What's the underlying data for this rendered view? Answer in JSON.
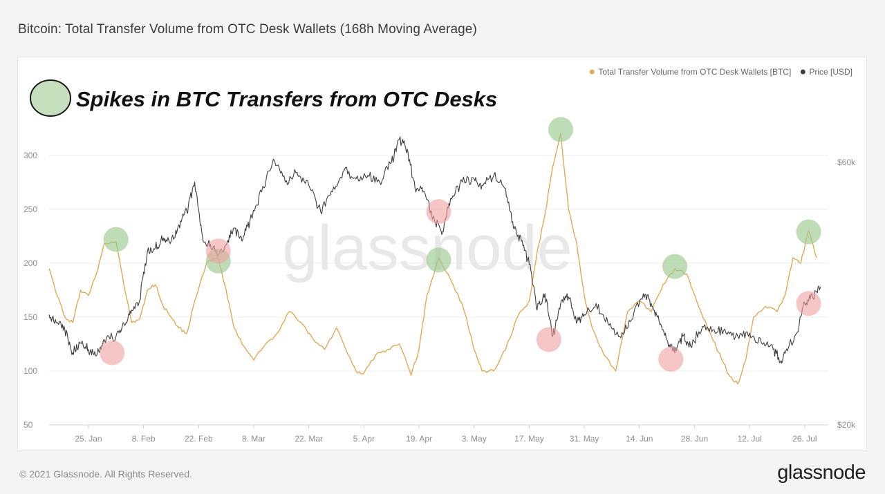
{
  "title": "Bitcoin: Total Transfer Volume from OTC Desk Wallets (168h Moving Average)",
  "annotation": "Spikes in BTC Transfers from OTC Desks",
  "watermark": "glassnode",
  "footer": {
    "copyright": "© 2021 Glassnode. All Rights Reserved.",
    "brand": "glassnode"
  },
  "colors": {
    "volume": "#e3a856",
    "price": "#3d3d3d",
    "spike_marker": "#9bc98f",
    "dip_marker": "#f0a0a0",
    "grid": "#ececec",
    "axis_text": "#8f8f8f"
  },
  "chart_data": {
    "type": "line",
    "grid": true,
    "legend_position": "top-right",
    "x_ticks": [
      "25. Jan",
      "8. Feb",
      "22. Feb",
      "8. Mar",
      "22. Mar",
      "5. Apr",
      "19. Apr",
      "3. May",
      "17. May",
      "31. May",
      "14. Jun",
      "28. Jun",
      "12. Jul",
      "26. Jul"
    ],
    "xlim": [
      "2021-01-15",
      "2021-08-01"
    ],
    "y_left": {
      "label": "",
      "ylim": [
        50,
        330
      ],
      "ticks": [
        "50",
        "100",
        "150",
        "200",
        "250",
        "300"
      ],
      "tick_values": [
        50,
        100,
        150,
        200,
        250,
        300
      ]
    },
    "y_right": {
      "label": "",
      "ylim": [
        20000,
        66000
      ],
      "ticks": [
        "$20k",
        "$60k"
      ],
      "tick_values": [
        20000,
        60000
      ]
    },
    "series": [
      {
        "name": "Total Transfer Volume from OTC Desk Wallets [BTC]",
        "axis": "left",
        "color": "#e3a856",
        "points": [
          [
            "2021-01-15",
            195
          ],
          [
            "2021-01-17",
            170
          ],
          [
            "2021-01-19",
            150
          ],
          [
            "2021-01-21",
            145
          ],
          [
            "2021-01-23",
            175
          ],
          [
            "2021-01-25",
            170
          ],
          [
            "2021-01-27",
            190
          ],
          [
            "2021-01-29",
            218
          ],
          [
            "2021-02-01",
            220
          ],
          [
            "2021-02-03",
            180
          ],
          [
            "2021-02-05",
            145
          ],
          [
            "2021-02-07",
            148
          ],
          [
            "2021-02-09",
            175
          ],
          [
            "2021-02-11",
            180
          ],
          [
            "2021-02-13",
            160
          ],
          [
            "2021-02-15",
            150
          ],
          [
            "2021-02-17",
            140
          ],
          [
            "2021-02-19",
            135
          ],
          [
            "2021-02-21",
            165
          ],
          [
            "2021-02-24",
            200
          ],
          [
            "2021-02-27",
            205
          ],
          [
            "2021-03-01",
            175
          ],
          [
            "2021-03-03",
            140
          ],
          [
            "2021-03-05",
            125
          ],
          [
            "2021-03-08",
            110
          ],
          [
            "2021-03-11",
            125
          ],
          [
            "2021-03-14",
            135
          ],
          [
            "2021-03-17",
            155
          ],
          [
            "2021-03-20",
            145
          ],
          [
            "2021-03-23",
            130
          ],
          [
            "2021-03-26",
            120
          ],
          [
            "2021-03-29",
            140
          ],
          [
            "2021-04-01",
            115
          ],
          [
            "2021-04-03",
            100
          ],
          [
            "2021-04-05",
            98
          ],
          [
            "2021-04-08",
            115
          ],
          [
            "2021-04-11",
            120
          ],
          [
            "2021-04-14",
            125
          ],
          [
            "2021-04-17",
            96
          ],
          [
            "2021-04-19",
            120
          ],
          [
            "2021-04-21",
            170
          ],
          [
            "2021-04-24",
            205
          ],
          [
            "2021-04-27",
            185
          ],
          [
            "2021-04-29",
            170
          ],
          [
            "2021-05-01",
            150
          ],
          [
            "2021-05-03",
            120
          ],
          [
            "2021-05-05",
            100
          ],
          [
            "2021-05-08",
            100
          ],
          [
            "2021-05-11",
            120
          ],
          [
            "2021-05-14",
            150
          ],
          [
            "2021-05-17",
            165
          ],
          [
            "2021-05-19",
            210
          ],
          [
            "2021-05-21",
            245
          ],
          [
            "2021-05-23",
            290
          ],
          [
            "2021-05-25",
            320
          ],
          [
            "2021-05-27",
            250
          ],
          [
            "2021-05-29",
            220
          ],
          [
            "2021-05-31",
            170
          ],
          [
            "2021-06-02",
            140
          ],
          [
            "2021-06-05",
            115
          ],
          [
            "2021-06-08",
            100
          ],
          [
            "2021-06-11",
            155
          ],
          [
            "2021-06-14",
            165
          ],
          [
            "2021-06-17",
            155
          ],
          [
            "2021-06-20",
            180
          ],
          [
            "2021-06-23",
            195
          ],
          [
            "2021-06-26",
            190
          ],
          [
            "2021-06-29",
            160
          ],
          [
            "2021-07-02",
            135
          ],
          [
            "2021-07-05",
            110
          ],
          [
            "2021-07-07",
            95
          ],
          [
            "2021-07-09",
            88
          ],
          [
            "2021-07-11",
            110
          ],
          [
            "2021-07-13",
            150
          ],
          [
            "2021-07-16",
            160
          ],
          [
            "2021-07-19",
            155
          ],
          [
            "2021-07-21",
            170
          ],
          [
            "2021-07-23",
            205
          ],
          [
            "2021-07-25",
            200
          ],
          [
            "2021-07-27",
            230
          ],
          [
            "2021-07-29",
            205
          ]
        ]
      },
      {
        "name": "Price [USD]",
        "axis": "right",
        "color": "#3d3d3d",
        "points": [
          [
            "2021-01-15",
            36800
          ],
          [
            "2021-01-17",
            35500
          ],
          [
            "2021-01-19",
            34500
          ],
          [
            "2021-01-21",
            31000
          ],
          [
            "2021-01-23",
            32500
          ],
          [
            "2021-01-25",
            31500
          ],
          [
            "2021-01-27",
            30500
          ],
          [
            "2021-01-29",
            33000
          ],
          [
            "2021-02-01",
            33500
          ],
          [
            "2021-02-03",
            35500
          ],
          [
            "2021-02-05",
            37500
          ],
          [
            "2021-02-07",
            39000
          ],
          [
            "2021-02-09",
            46500
          ],
          [
            "2021-02-11",
            47000
          ],
          [
            "2021-02-13",
            48500
          ],
          [
            "2021-02-15",
            48000
          ],
          [
            "2021-02-17",
            50500
          ],
          [
            "2021-02-19",
            52500
          ],
          [
            "2021-02-21",
            57000
          ],
          [
            "2021-02-23",
            48500
          ],
          [
            "2021-02-25",
            47500
          ],
          [
            "2021-02-27",
            46000
          ],
          [
            "2021-03-01",
            47500
          ],
          [
            "2021-03-03",
            50000
          ],
          [
            "2021-03-05",
            48000
          ],
          [
            "2021-03-07",
            51000
          ],
          [
            "2021-03-10",
            55500
          ],
          [
            "2021-03-13",
            60500
          ],
          [
            "2021-03-16",
            57000
          ],
          [
            "2021-03-19",
            58500
          ],
          [
            "2021-03-22",
            56500
          ],
          [
            "2021-03-25",
            52500
          ],
          [
            "2021-03-28",
            55500
          ],
          [
            "2021-03-31",
            58800
          ],
          [
            "2021-04-03",
            57500
          ],
          [
            "2021-04-06",
            58000
          ],
          [
            "2021-04-09",
            57000
          ],
          [
            "2021-04-12",
            60000
          ],
          [
            "2021-04-14",
            63500
          ],
          [
            "2021-04-16",
            62000
          ],
          [
            "2021-04-18",
            56000
          ],
          [
            "2021-04-20",
            55500
          ],
          [
            "2021-04-23",
            51000
          ],
          [
            "2021-04-25",
            49500
          ],
          [
            "2021-04-27",
            54500
          ],
          [
            "2021-04-30",
            57000
          ],
          [
            "2021-05-03",
            57500
          ],
          [
            "2021-05-05",
            56500
          ],
          [
            "2021-05-08",
            58000
          ],
          [
            "2021-05-11",
            56000
          ],
          [
            "2021-05-13",
            50000
          ],
          [
            "2021-05-15",
            48000
          ],
          [
            "2021-05-17",
            44500
          ],
          [
            "2021-05-19",
            37500
          ],
          [
            "2021-05-21",
            40000
          ],
          [
            "2021-05-23",
            33500
          ],
          [
            "2021-05-25",
            38500
          ],
          [
            "2021-05-27",
            39500
          ],
          [
            "2021-05-29",
            35500
          ],
          [
            "2021-05-31",
            36800
          ],
          [
            "2021-06-03",
            38500
          ],
          [
            "2021-06-06",
            35500
          ],
          [
            "2021-06-09",
            33500
          ],
          [
            "2021-06-12",
            36000
          ],
          [
            "2021-06-15",
            40000
          ],
          [
            "2021-06-17",
            38500
          ],
          [
            "2021-06-19",
            35800
          ],
          [
            "2021-06-21",
            33000
          ],
          [
            "2021-06-23",
            31000
          ],
          [
            "2021-06-25",
            33500
          ],
          [
            "2021-06-27",
            32000
          ],
          [
            "2021-06-30",
            35000
          ],
          [
            "2021-07-03",
            34500
          ],
          [
            "2021-07-06",
            34000
          ],
          [
            "2021-07-09",
            33500
          ],
          [
            "2021-07-12",
            34000
          ],
          [
            "2021-07-15",
            32500
          ],
          [
            "2021-07-18",
            31500
          ],
          [
            "2021-07-20",
            29800
          ],
          [
            "2021-07-22",
            32000
          ],
          [
            "2021-07-24",
            34000
          ],
          [
            "2021-07-26",
            38500
          ],
          [
            "2021-07-28",
            39500
          ],
          [
            "2021-07-30",
            41000
          ]
        ]
      }
    ],
    "annotations": {
      "legend_marker": "spike",
      "spikes": [
        {
          "date": "2021-02-01",
          "series": "Total Transfer Volume from OTC Desk Wallets [BTC]",
          "value": 222
        },
        {
          "date": "2021-02-27",
          "series": "Total Transfer Volume from OTC Desk Wallets [BTC]",
          "value": 202
        },
        {
          "date": "2021-04-24",
          "series": "Total Transfer Volume from OTC Desk Wallets [BTC]",
          "value": 203
        },
        {
          "date": "2021-05-25",
          "series": "Total Transfer Volume from OTC Desk Wallets [BTC]",
          "value": 324
        },
        {
          "date": "2021-06-23",
          "series": "Total Transfer Volume from OTC Desk Wallets [BTC]",
          "value": 197
        },
        {
          "date": "2021-07-27",
          "series": "Total Transfer Volume from OTC Desk Wallets [BTC]",
          "value": 229
        }
      ],
      "dips": [
        {
          "date": "2021-01-31",
          "series": "Price [USD]",
          "value": 31000
        },
        {
          "date": "2021-02-27",
          "series": "Price [USD]",
          "value": 46500
        },
        {
          "date": "2021-04-24",
          "series": "Price [USD]",
          "value": 52500
        },
        {
          "date": "2021-05-22",
          "series": "Price [USD]",
          "value": 33000
        },
        {
          "date": "2021-06-22",
          "series": "Price [USD]",
          "value": 30000
        },
        {
          "date": "2021-07-27",
          "series": "Price [USD]",
          "value": 38500
        }
      ]
    }
  }
}
